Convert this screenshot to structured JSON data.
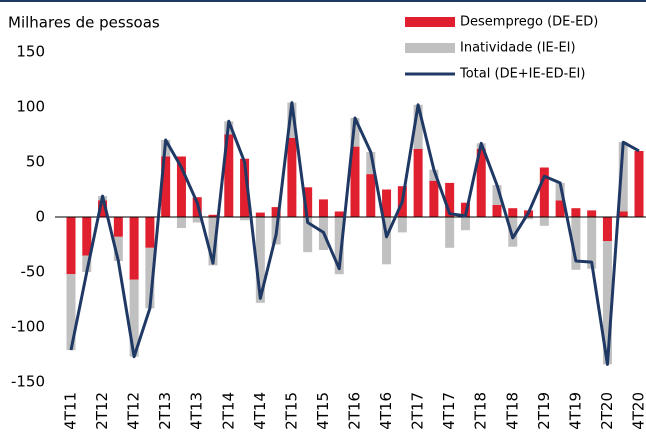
{
  "chart_data": {
    "type": "bar",
    "title": "Milhares de pessoas",
    "categories": [
      "4T11",
      null,
      "2T12",
      null,
      "4T12",
      null,
      "2T13",
      null,
      "4T13",
      null,
      "2T14",
      null,
      "4T14",
      null,
      "2T15",
      null,
      "4T15",
      null,
      "2T16",
      null,
      "4T16",
      null,
      "2T17",
      null,
      "4T17",
      null,
      "2T18",
      null,
      "4T18",
      null,
      "2T19",
      null,
      "4T19",
      null,
      "2T20",
      null,
      "4T20"
    ],
    "series": [
      {
        "name": "Desemprego (DE-ED)",
        "type": "bar",
        "color": "#e0202e",
        "values": [
          -52,
          -35,
          15,
          -18,
          -57,
          -28,
          55,
          55,
          18,
          2,
          75,
          53,
          4,
          9,
          72,
          27,
          16,
          5,
          64,
          39,
          25,
          28,
          62,
          33,
          31,
          13,
          62,
          11,
          8,
          6,
          45,
          15,
          8,
          6,
          -22,
          5,
          60
        ]
      },
      {
        "name": "Inatividade (IE-EI)",
        "type": "bar",
        "color": "#c0c0c0",
        "values": [
          -69,
          -15,
          4,
          -22,
          -70,
          -55,
          15,
          -10,
          -5,
          -44,
          12,
          -3,
          -78,
          -25,
          32,
          -32,
          -30,
          -52,
          26,
          20,
          -43,
          -14,
          40,
          10,
          -28,
          -12,
          5,
          18,
          -27,
          -2,
          -8,
          16,
          -48,
          -47,
          -112,
          63,
          0
        ]
      },
      {
        "name": "Total (DE+IE-ED-EI)",
        "type": "line",
        "color": "#1f3864",
        "values": [
          -121,
          -50,
          19,
          -40,
          -127,
          -83,
          70,
          45,
          13,
          -42,
          87,
          50,
          -74,
          -16,
          104,
          -5,
          -14,
          -47,
          90,
          59,
          -18,
          14,
          102,
          43,
          3,
          1,
          67,
          29,
          -19,
          4,
          37,
          31,
          -40,
          -41,
          -134,
          68,
          60
        ]
      }
    ],
    "ylim": [
      -150,
      150
    ],
    "yticks": [
      -150,
      -100,
      -50,
      0,
      50,
      100,
      150
    ]
  }
}
